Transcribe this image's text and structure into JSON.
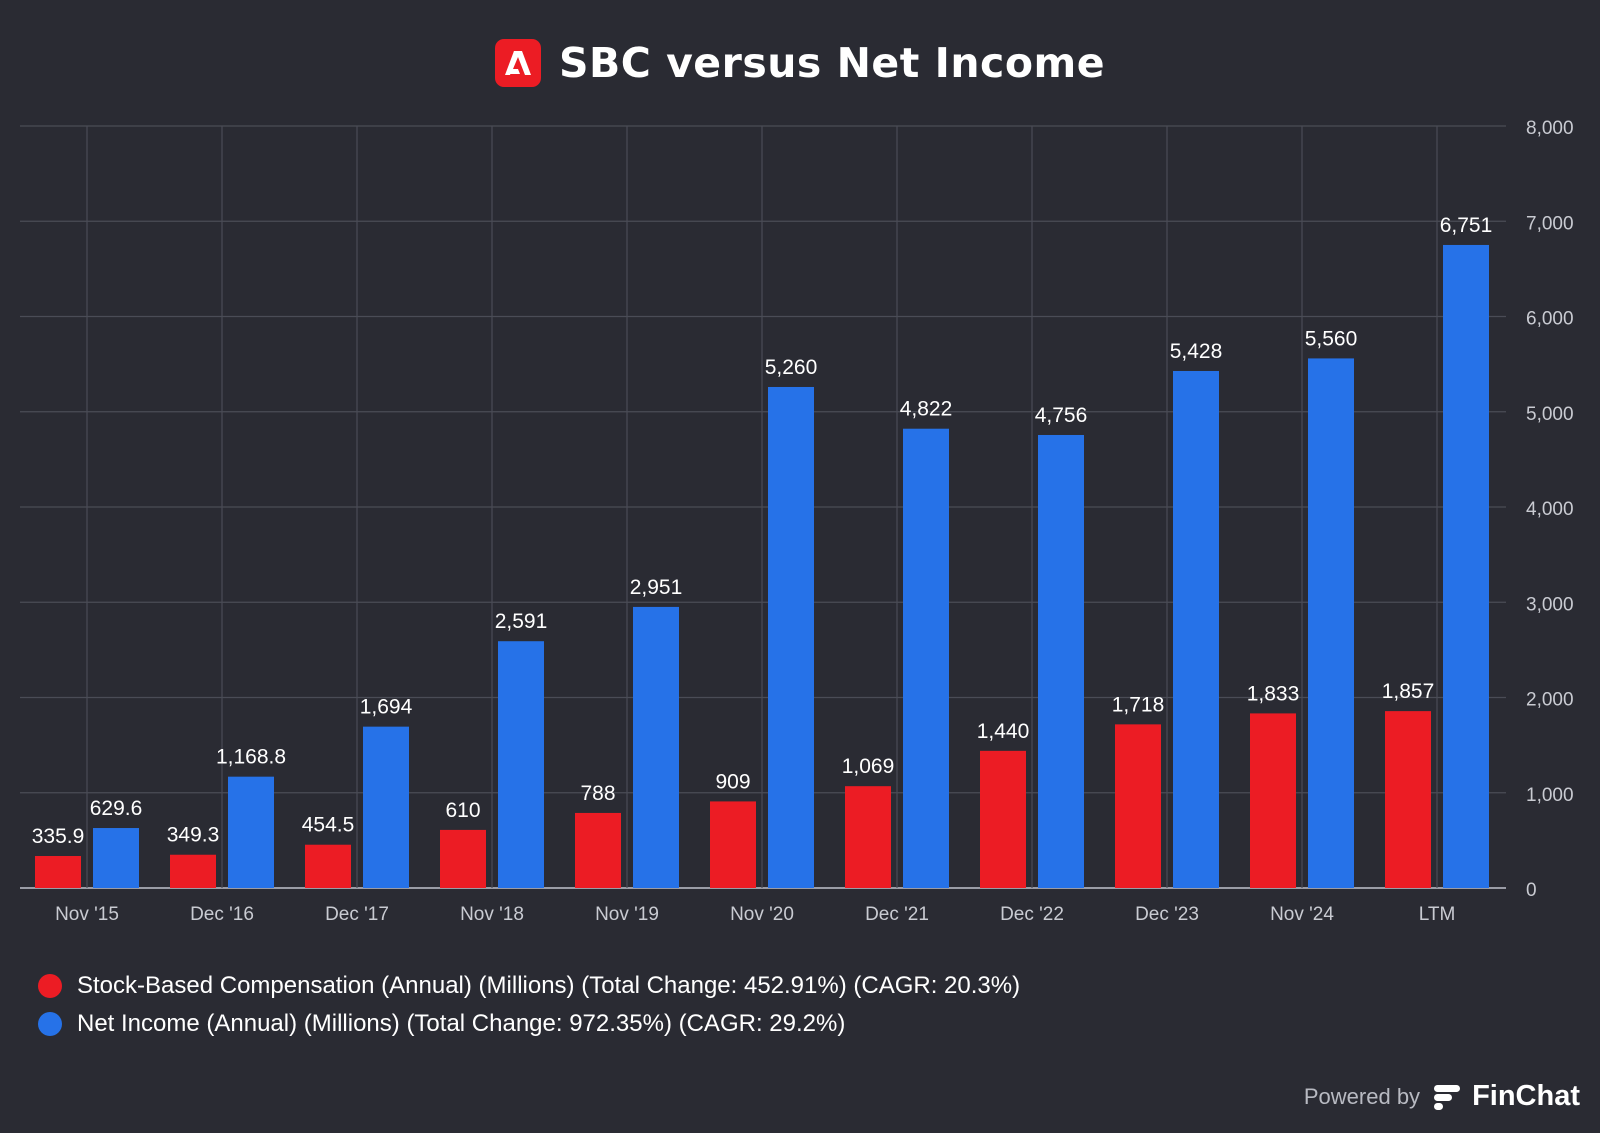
{
  "header": {
    "title": "SBC versus Net Income",
    "logo_icon": "adobe-logo-icon",
    "logo_color": "#ec1c24"
  },
  "chart_data": {
    "type": "bar",
    "categories": [
      "Nov '15",
      "Dec '16",
      "Dec '17",
      "Nov '18",
      "Nov '19",
      "Nov '20",
      "Dec '21",
      "Dec '22",
      "Dec '23",
      "Nov '24",
      "LTM"
    ],
    "series": [
      {
        "name": "Stock-Based Compensation (Annual) (Millions) (Total Change: 452.91%) (CAGR: 20.3%)",
        "color": "#ec1c24",
        "values": [
          335.9,
          349.3,
          454.5,
          610,
          788,
          909,
          1069,
          1440,
          1718,
          1833,
          1857
        ],
        "labels": [
          "335.9",
          "349.3",
          "454.5",
          "610",
          "788",
          "909",
          "1,069",
          "1,440",
          "1,718",
          "1,833",
          "1,857"
        ]
      },
      {
        "name": "Net Income (Annual) (Millions) (Total Change: 972.35%) (CAGR: 29.2%)",
        "color": "#2672e8",
        "values": [
          629.6,
          1168.8,
          1694,
          2591,
          2951,
          5260,
          4822,
          4756,
          5428,
          5560,
          6751
        ],
        "labels": [
          "629.6",
          "1,168.8",
          "1,694",
          "2,591",
          "2,951",
          "5,260",
          "4,822",
          "4,756",
          "5,428",
          "5,560",
          "6,751"
        ]
      }
    ],
    "y_axis": {
      "position": "right",
      "ylim": [
        0,
        8000
      ],
      "ticks": [
        0,
        1000,
        2000,
        3000,
        4000,
        5000,
        6000,
        7000,
        8000
      ],
      "tick_labels": [
        "0",
        "1,000",
        "2,000",
        "3,000",
        "4,000",
        "5,000",
        "6,000",
        "7,000",
        "8,000"
      ]
    },
    "grid": true,
    "legend_position": "bottom-left",
    "title": "SBC versus Net Income"
  },
  "footer": {
    "powered_by": "Powered by",
    "brand": "FinChat",
    "brand_icon": "finchat-logo-icon"
  }
}
